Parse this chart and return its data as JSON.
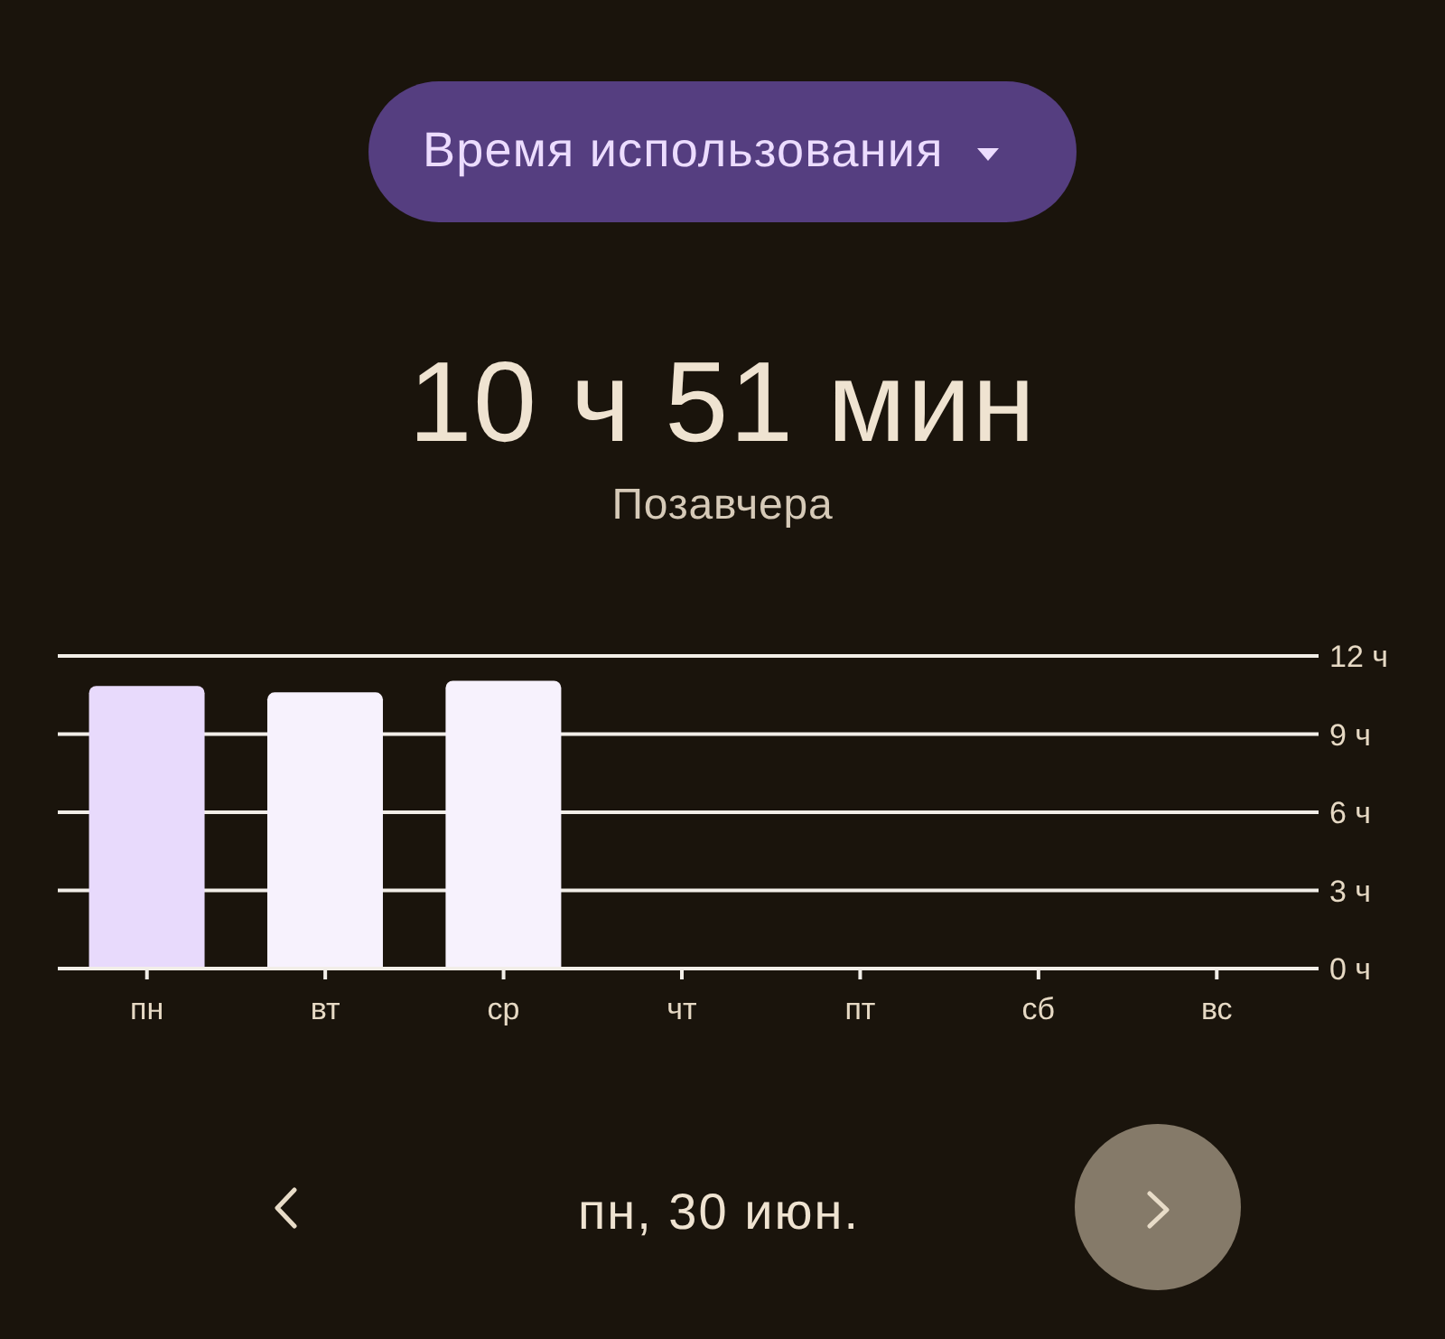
{
  "chart_data": {
    "type": "bar",
    "title": "10 ч 51 мин",
    "subtitle": "Позавчера",
    "annotations": [
      "Время использования",
      "пн, 30 июн."
    ],
    "categories": [
      "пн",
      "вт",
      "ср",
      "чт",
      "пт",
      "сб",
      "вс"
    ],
    "values": [
      10.85,
      10.6,
      11.05,
      null,
      null,
      null,
      null
    ],
    "colors": [
      "#e8dafc",
      "#f7f2fd",
      "#f7f2fd",
      "#f7f2fd",
      "#f7f2fd",
      "#f7f2fd",
      "#f7f2fd"
    ],
    "ylim": [
      0,
      12
    ],
    "yticks": [
      {
        "value": 0,
        "label": "0 ч"
      },
      {
        "value": 3,
        "label": "3 ч"
      },
      {
        "value": 6,
        "label": "6 ч"
      },
      {
        "value": 9,
        "label": "9 ч"
      },
      {
        "value": 12,
        "label": "12 ч"
      }
    ],
    "grid": "y"
  }
}
